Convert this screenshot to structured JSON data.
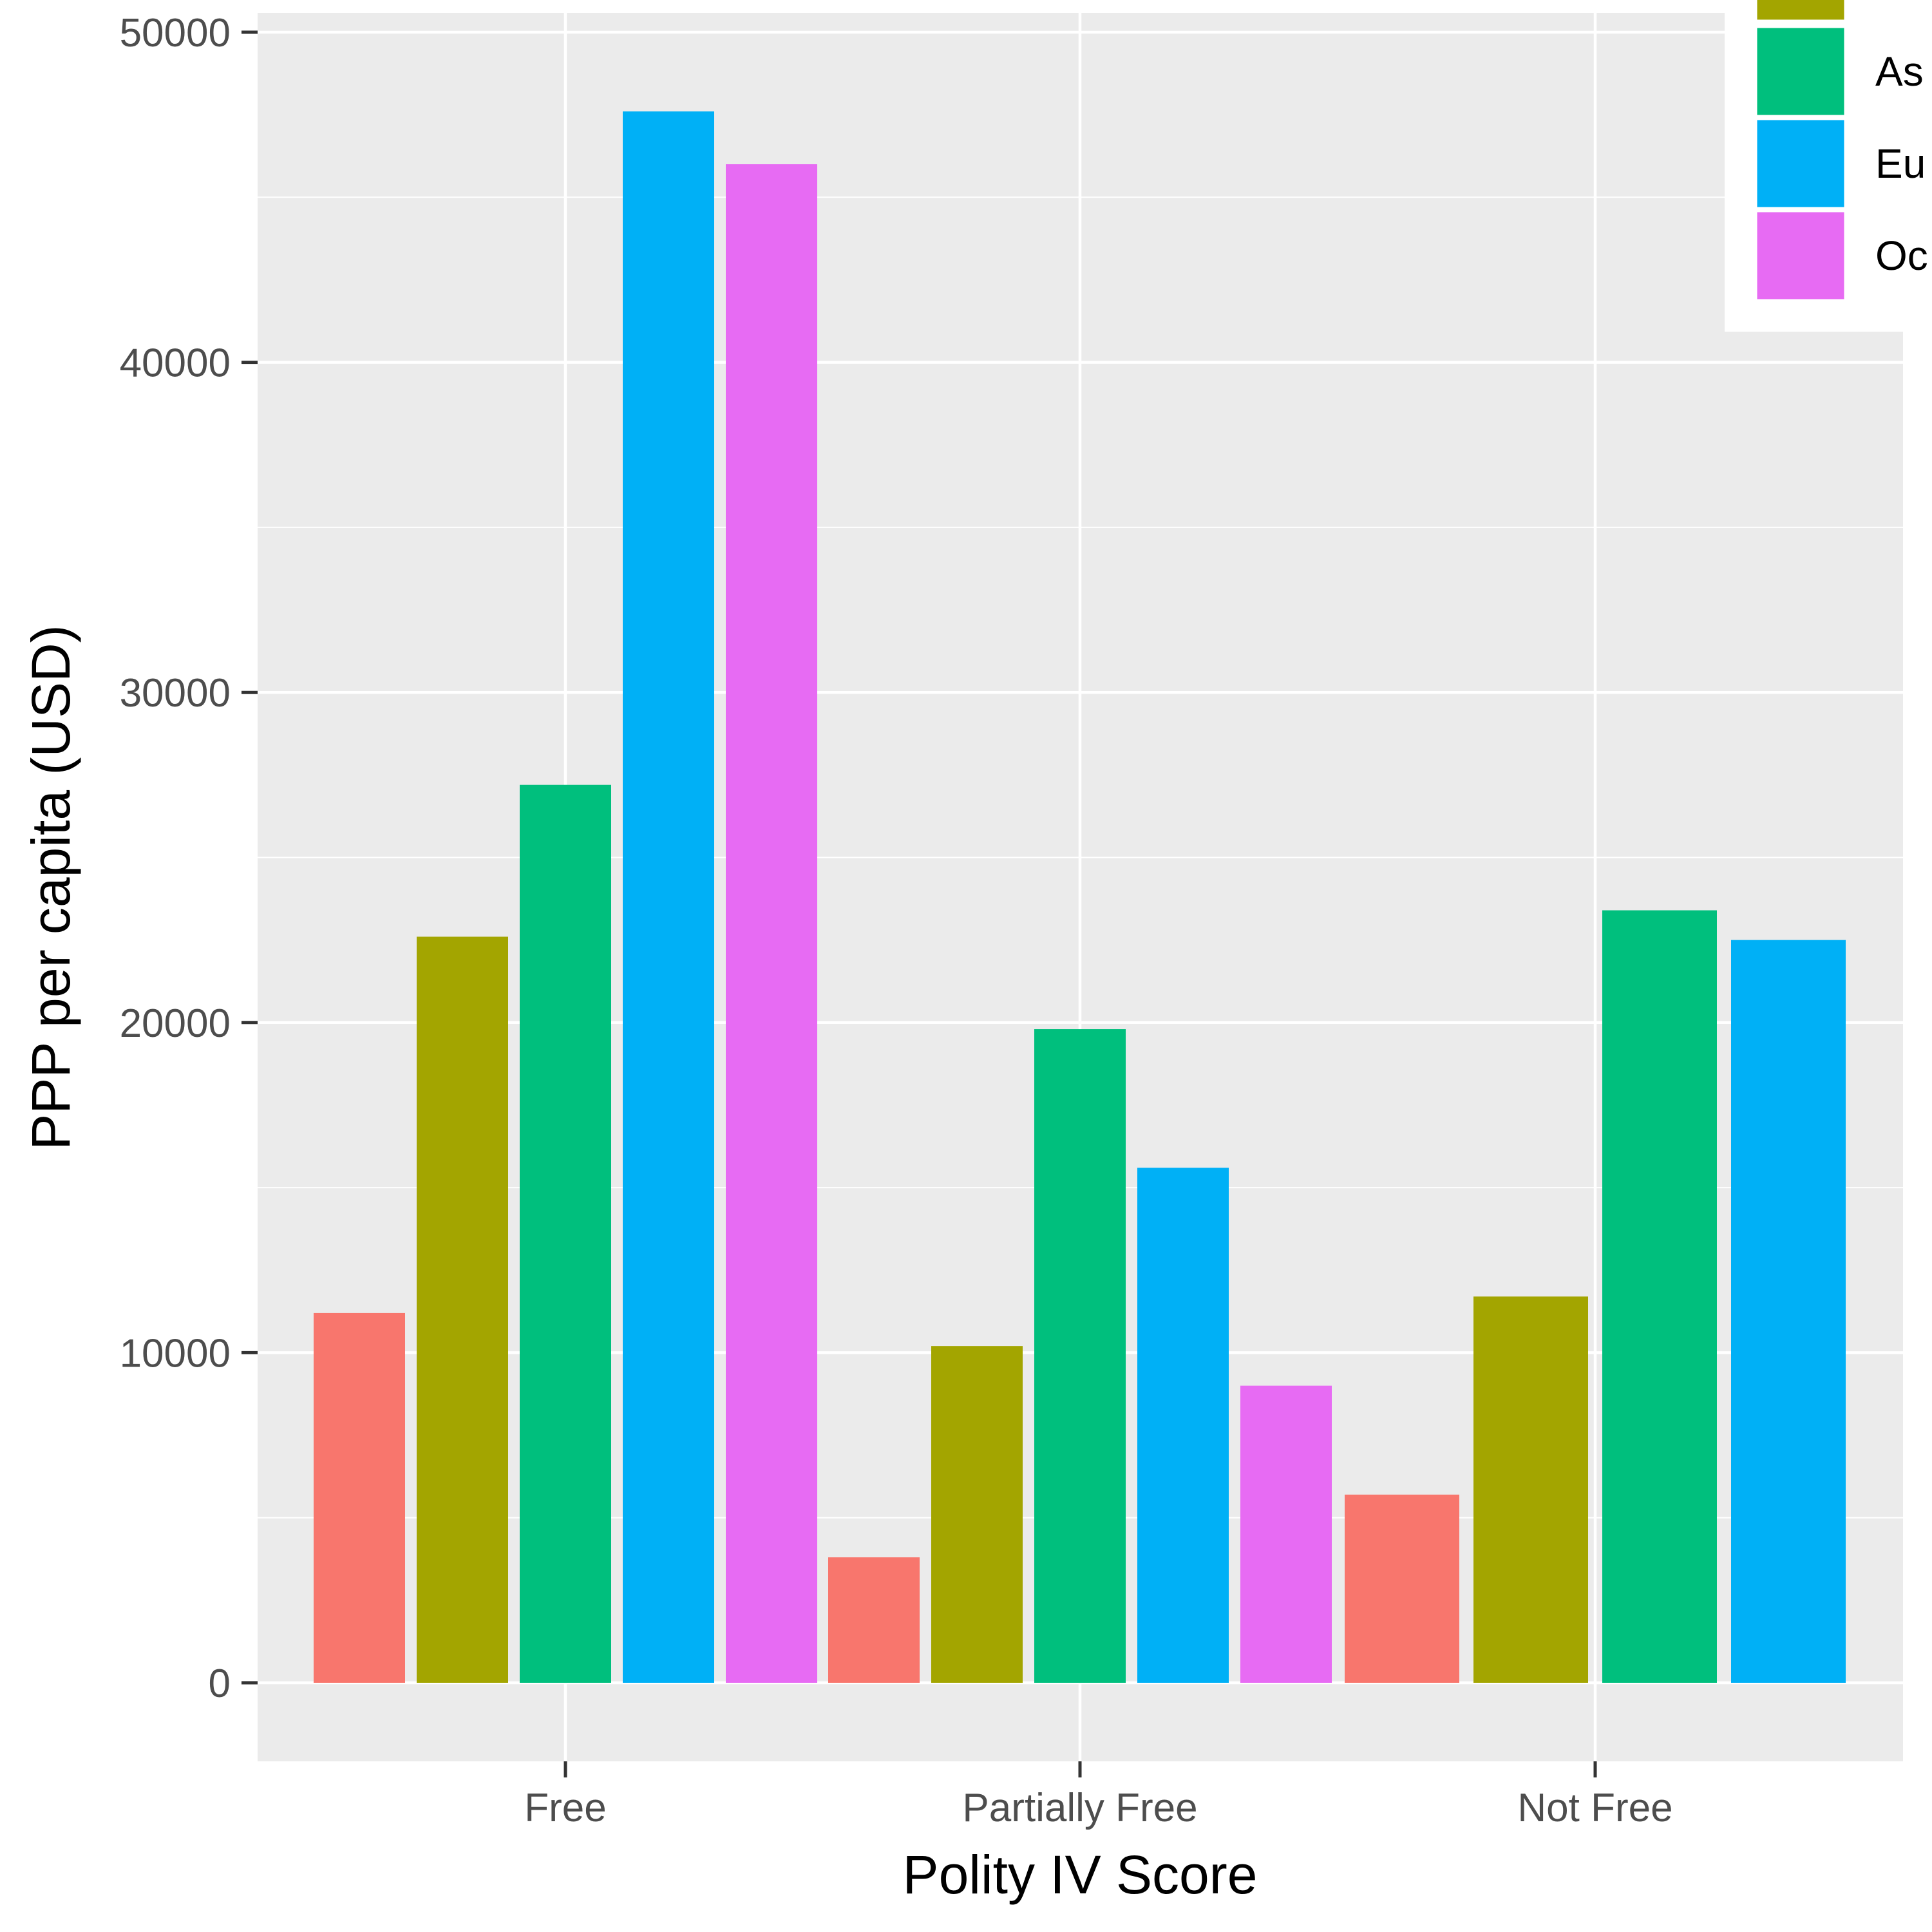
{
  "chart_data": {
    "type": "bar",
    "title": "",
    "xlabel": "Polity IV Score",
    "ylabel": "PPP per capita (USD)",
    "categories": [
      "Free",
      "Partially Free",
      "Not Free"
    ],
    "ylim": [
      -2400,
      50800
    ],
    "yticks": [
      0,
      10000,
      20000,
      30000,
      40000,
      50000
    ],
    "yticks_labels": [
      "0",
      "10000",
      "20000",
      "30000",
      "40000",
      "50000"
    ],
    "grid": true,
    "legend_position": "top-right",
    "series": [
      {
        "color": "#F8766D",
        "values": [
          11200,
          3800,
          5700
        ]
      },
      {
        "color": "#A3A500",
        "values": [
          22600,
          10200,
          11700
        ]
      },
      {
        "name": "As",
        "color": "#00BF7D",
        "values": [
          27200,
          19800,
          23400
        ]
      },
      {
        "name": "Eu",
        "color": "#00B0F6",
        "values": [
          47600,
          15600,
          22500
        ]
      },
      {
        "name": "Oc",
        "color": "#E76BF3",
        "values": [
          46000,
          9000,
          null
        ]
      }
    ]
  }
}
